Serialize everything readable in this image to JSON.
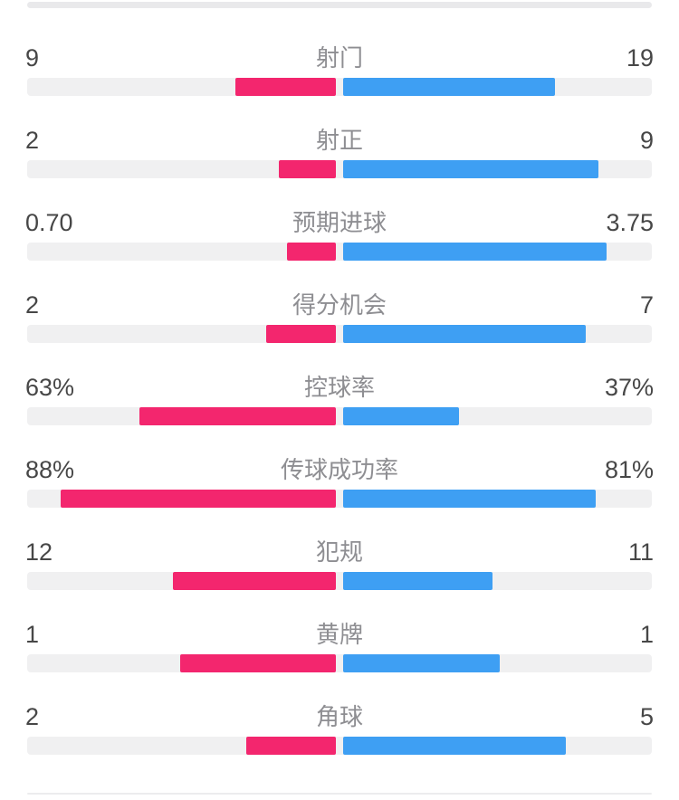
{
  "colors": {
    "home": "#F3266E",
    "away": "#3E9FF3",
    "track": "#F0F0F1",
    "topbar": "#E9E9EB",
    "divider": "#ECECEE",
    "value_text": "#474747",
    "label_text": "#8E8E92",
    "background": "#FFFFFF"
  },
  "stats": {
    "rows": [
      {
        "label": "射门",
        "left": "9",
        "right": "19",
        "left_num": 9,
        "right_num": 19,
        "percent": false
      },
      {
        "label": "射正",
        "left": "2",
        "right": "9",
        "left_num": 2,
        "right_num": 9,
        "percent": false
      },
      {
        "label": "预期进球",
        "left": "0.70",
        "right": "3.75",
        "left_num": 0.7,
        "right_num": 3.75,
        "percent": false
      },
      {
        "label": "得分机会",
        "left": "2",
        "right": "7",
        "left_num": 2,
        "right_num": 7,
        "percent": false
      },
      {
        "label": "控球率",
        "left": "63%",
        "right": "37%",
        "left_num": 63,
        "right_num": 37,
        "percent": true
      },
      {
        "label": "传球成功率",
        "left": "88%",
        "right": "81%",
        "left_num": 88,
        "right_num": 81,
        "percent": true
      },
      {
        "label": "犯规",
        "left": "12",
        "right": "11",
        "left_num": 12,
        "right_num": 11,
        "percent": false
      },
      {
        "label": "黄牌",
        "left": "1",
        "right": "1",
        "left_num": 1,
        "right_num": 1,
        "percent": false
      },
      {
        "label": "角球",
        "left": "2",
        "right": "5",
        "left_num": 2,
        "right_num": 5,
        "percent": false
      }
    ]
  },
  "chart_data": {
    "type": "bar",
    "variant": "diverging-horizontal-pairs",
    "title": "",
    "categories": [
      "射门",
      "射正",
      "预期进球",
      "得分机会",
      "控球率",
      "传球成功率",
      "犯规",
      "黄牌",
      "角球"
    ],
    "series": [
      {
        "name": "home-team",
        "color": "#F3266E",
        "side": "left",
        "values": [
          9,
          2,
          0.7,
          2,
          63,
          88,
          12,
          1,
          2
        ],
        "display": [
          "9",
          "2",
          "0.70",
          "2",
          "63%",
          "88%",
          "12",
          "1",
          "2"
        ]
      },
      {
        "name": "away-team",
        "color": "#3E9FF3",
        "side": "right",
        "values": [
          19,
          9,
          3.75,
          7,
          37,
          81,
          11,
          1,
          5
        ],
        "display": [
          "19",
          "9",
          "3.75",
          "7",
          "37%",
          "81%",
          "11",
          "1",
          "5"
        ]
      }
    ],
    "percent_row_indices": [
      4,
      5
    ],
    "legend": "none",
    "grid": false,
    "scaling_rule": "count rows: bar length = value / (left+right) of half-track; percent rows: bar length = percent of half-track; bars diverge from center with small gap"
  }
}
